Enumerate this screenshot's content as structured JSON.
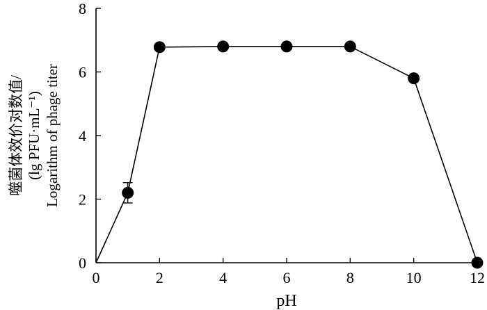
{
  "chart_data": {
    "type": "line",
    "x": [
      0,
      1,
      2,
      4,
      6,
      8,
      10,
      12
    ],
    "series": [
      {
        "values": [
          0,
          2.2,
          6.78,
          6.8,
          6.8,
          6.8,
          5.8,
          0
        ],
        "error": [
          0,
          0.32,
          0,
          0,
          0,
          0,
          0,
          0
        ],
        "marker": "filled-circle",
        "color": "#000000"
      }
    ],
    "xlabel": "pH",
    "ylabel_lines": [
      "噬菌体效价对数值/",
      "(lg PFU·mL⁻¹)",
      "Logarithm of phage titer"
    ],
    "xlim": [
      0,
      12
    ],
    "ylim": [
      0,
      8
    ],
    "xticks": [
      "0",
      "2",
      "4",
      "6",
      "8",
      "10",
      "12"
    ],
    "yticks": [
      "0",
      "2",
      "4",
      "6",
      "8"
    ],
    "grid": false,
    "legend": "none"
  }
}
